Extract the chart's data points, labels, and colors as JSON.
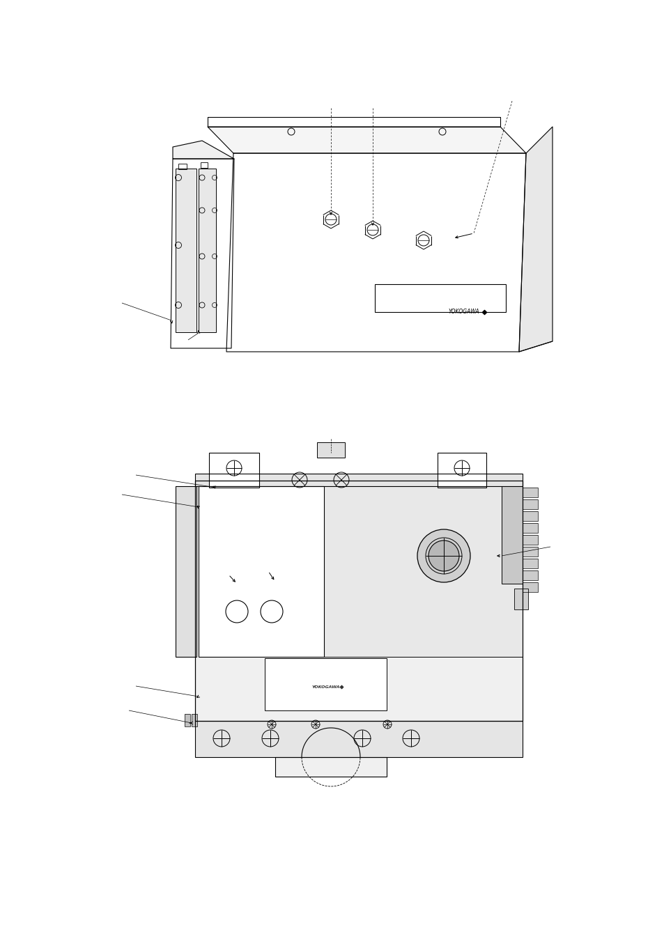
{
  "background_color": "#ffffff",
  "line_color": "#000000",
  "fig_width": 9.54,
  "fig_height": 13.51,
  "dpi": 100
}
